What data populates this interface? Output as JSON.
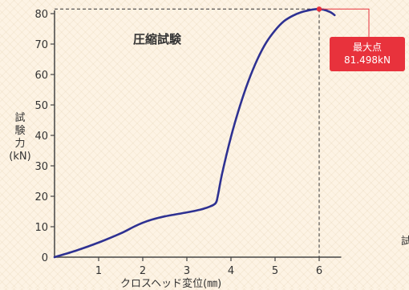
{
  "chart_data": {
    "type": "line",
    "title": "圧縮試験",
    "xlabel": "クロスヘッド変位(㎜)",
    "ylabel_chars": [
      "試",
      "験",
      "力"
    ],
    "ylabel_unit": "(kN)",
    "xlim": [
      0,
      6.5
    ],
    "ylim": [
      0,
      80
    ],
    "x_ticks": [
      1,
      2,
      3,
      4,
      5,
      6
    ],
    "y_ticks": [
      0,
      10,
      20,
      30,
      40,
      50,
      60,
      70,
      80
    ],
    "series": [
      {
        "x": [
          0,
          0.5,
          1.0,
          1.5,
          1.8,
          2.0,
          2.2,
          2.5,
          3.0,
          3.3,
          3.5,
          3.65,
          3.7,
          3.8,
          4.0,
          4.2,
          4.4,
          4.6,
          4.8,
          5.0,
          5.2,
          5.4,
          5.6,
          5.8,
          5.95,
          6.1,
          6.25,
          6.35
        ],
        "y": [
          0,
          2.2,
          4.8,
          7.8,
          10.0,
          11.3,
          12.3,
          13.4,
          14.7,
          15.6,
          16.5,
          17.7,
          20.0,
          27.5,
          39.5,
          49.5,
          58.0,
          65.0,
          70.5,
          74.5,
          77.5,
          79.3,
          80.5,
          81.2,
          81.5,
          81.3,
          80.5,
          79.5
        ],
        "color": "#2e3192"
      }
    ],
    "max_point": {
      "x": 6.0,
      "y": 81.498,
      "marker_color": "#e8323c"
    },
    "annotation": {
      "line1": "最大点",
      "line2": "81.498kN",
      "color": "#e8323c"
    }
  },
  "stray_text": "試"
}
